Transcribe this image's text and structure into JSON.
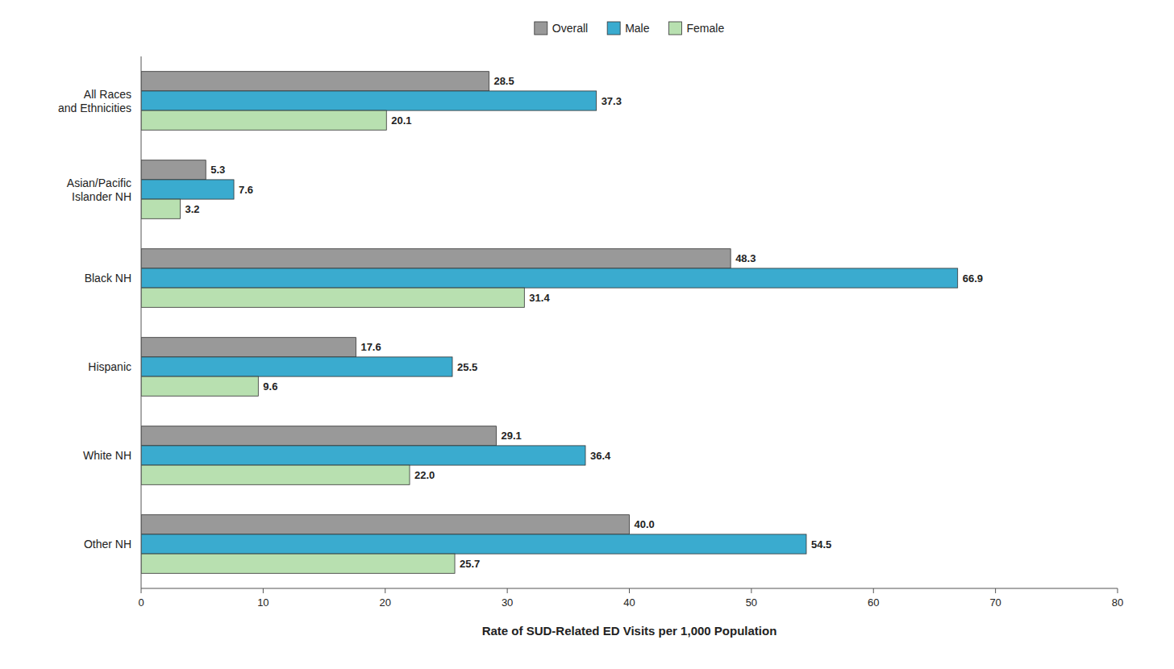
{
  "chart_data": {
    "type": "bar",
    "orientation": "horizontal",
    "categories": [
      "All Races\nand Ethnicities",
      "Asian/Pacific\nIslander NH",
      "Black NH",
      "Hispanic",
      "White NH",
      "Other NH"
    ],
    "series": [
      {
        "name": "Overall",
        "color": "#999999",
        "values": [
          28.5,
          5.3,
          48.3,
          17.6,
          29.1,
          40.0
        ],
        "value_labels": [
          "28.5",
          "5.3",
          "48.3",
          "17.6",
          "29.1",
          "40.0"
        ]
      },
      {
        "name": "Male",
        "color": "#3aabcf",
        "values": [
          37.3,
          7.6,
          66.9,
          25.5,
          36.4,
          54.5
        ],
        "value_labels": [
          "37.3",
          "7.6",
          "66.9",
          "25.5",
          "36.4",
          "54.5"
        ]
      },
      {
        "name": "Female",
        "color": "#b8e0b0",
        "values": [
          20.1,
          3.2,
          31.4,
          9.6,
          22.0,
          25.7
        ],
        "value_labels": [
          "20.1",
          "3.2",
          "31.4",
          "9.6",
          "22.0",
          "25.7"
        ]
      }
    ],
    "xlabel": "Rate of SUD-Related ED Visits per 1,000 Population",
    "xlim": [
      0,
      80
    ],
    "xticks": [
      0,
      10,
      20,
      30,
      40,
      50,
      60,
      70,
      80
    ],
    "data_labels": true,
    "legend": "top",
    "grid": false
  }
}
